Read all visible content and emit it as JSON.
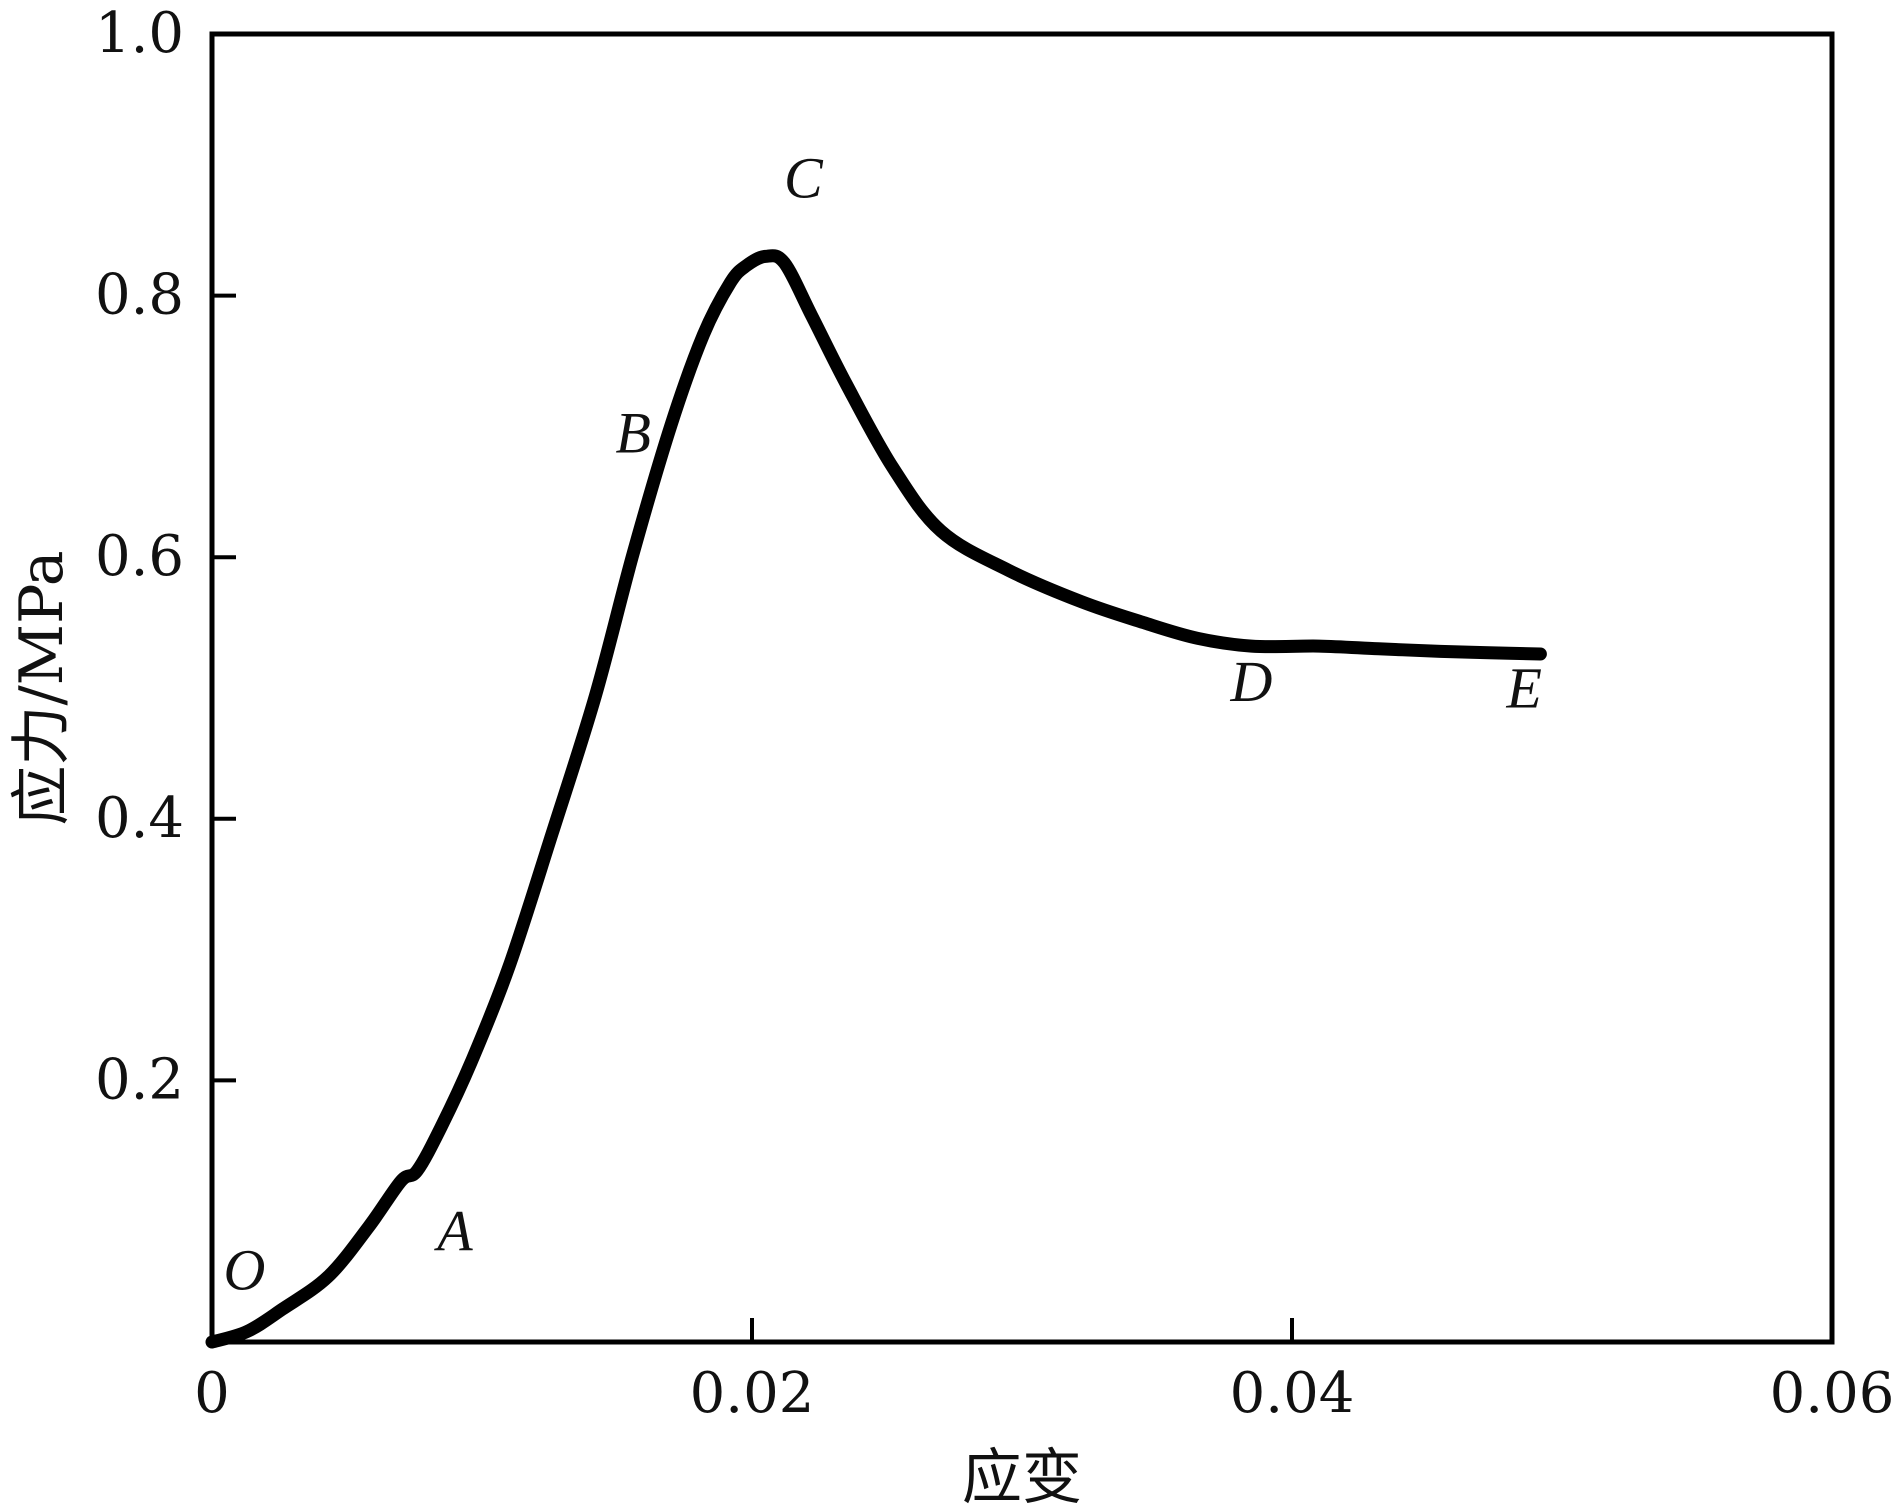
{
  "chart_data": {
    "type": "line",
    "title": "",
    "xlabel": "应变",
    "ylabel": "应力/MPa",
    "xlim": [
      0,
      0.06
    ],
    "ylim": [
      0,
      1.0
    ],
    "x_ticks": [
      0,
      0.02,
      0.04,
      0.06
    ],
    "x_tick_labels": [
      "0",
      "0.02",
      "0.04",
      "0.06"
    ],
    "y_ticks": [
      0.2,
      0.4,
      0.6,
      0.8,
      1.0
    ],
    "y_tick_labels": [
      "0.2",
      "0.4",
      "0.6",
      "0.8",
      "1.0"
    ],
    "grid": false,
    "line_color": "#000000",
    "series": [
      {
        "x": [
          0.0,
          0.0013,
          0.0026,
          0.0043,
          0.0058,
          0.007,
          0.0076,
          0.0085,
          0.0096,
          0.011,
          0.0126,
          0.0142,
          0.0156,
          0.017,
          0.0182,
          0.0192,
          0.0198,
          0.0205,
          0.0212,
          0.0222,
          0.0235,
          0.0252,
          0.027,
          0.0295,
          0.0322,
          0.0345,
          0.0365,
          0.0385,
          0.041,
          0.0432,
          0.0455,
          0.0473,
          0.0492
        ],
        "y": [
          0.0,
          0.008,
          0.025,
          0.05,
          0.088,
          0.123,
          0.131,
          0.165,
          0.214,
          0.287,
          0.389,
          0.494,
          0.603,
          0.701,
          0.77,
          0.81,
          0.823,
          0.83,
          0.825,
          0.785,
          0.732,
          0.669,
          0.62,
          0.59,
          0.566,
          0.55,
          0.538,
          0.532,
          0.532,
          0.53,
          0.528,
          0.527,
          0.526
        ]
      }
    ],
    "annotations": [
      {
        "text": "O",
        "x": 0.0012,
        "y": 0.04
      },
      {
        "text": "A",
        "x": 0.009,
        "y": 0.07
      },
      {
        "text": "B",
        "x": 0.0156,
        "y": 0.68
      },
      {
        "text": "C",
        "x": 0.0219,
        "y": 0.875
      },
      {
        "text": "D",
        "x": 0.0385,
        "y": 0.49
      },
      {
        "text": "E",
        "x": 0.0486,
        "y": 0.485
      }
    ]
  }
}
